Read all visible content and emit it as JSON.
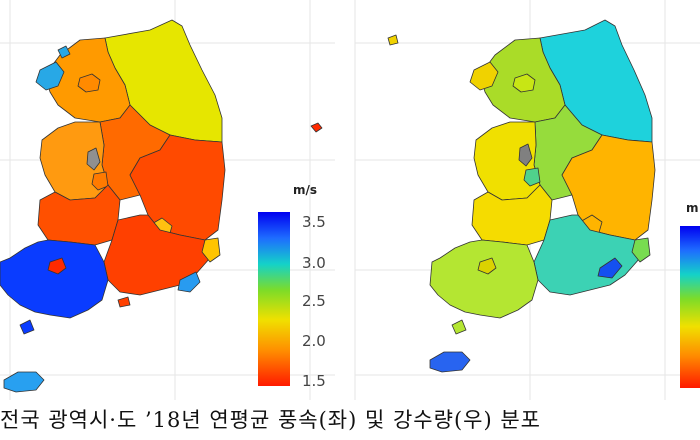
{
  "caption": "전국 광역시·도 ’18년 연평균 풍속(좌) 및 강수량(우) 분포",
  "left_map": {
    "legend": {
      "unit": "m/s",
      "ticks": [
        "3.5",
        "3.0",
        "2.5",
        "2.0",
        "1.5"
      ]
    }
  },
  "right_map": {
    "legend": {
      "unit": "m"
    }
  },
  "colors": {
    "scale": [
      "#0000ff",
      "#1e90ff",
      "#00d2d2",
      "#32dc32",
      "#e6e600",
      "#ffa500",
      "#ff2a00"
    ]
  }
}
